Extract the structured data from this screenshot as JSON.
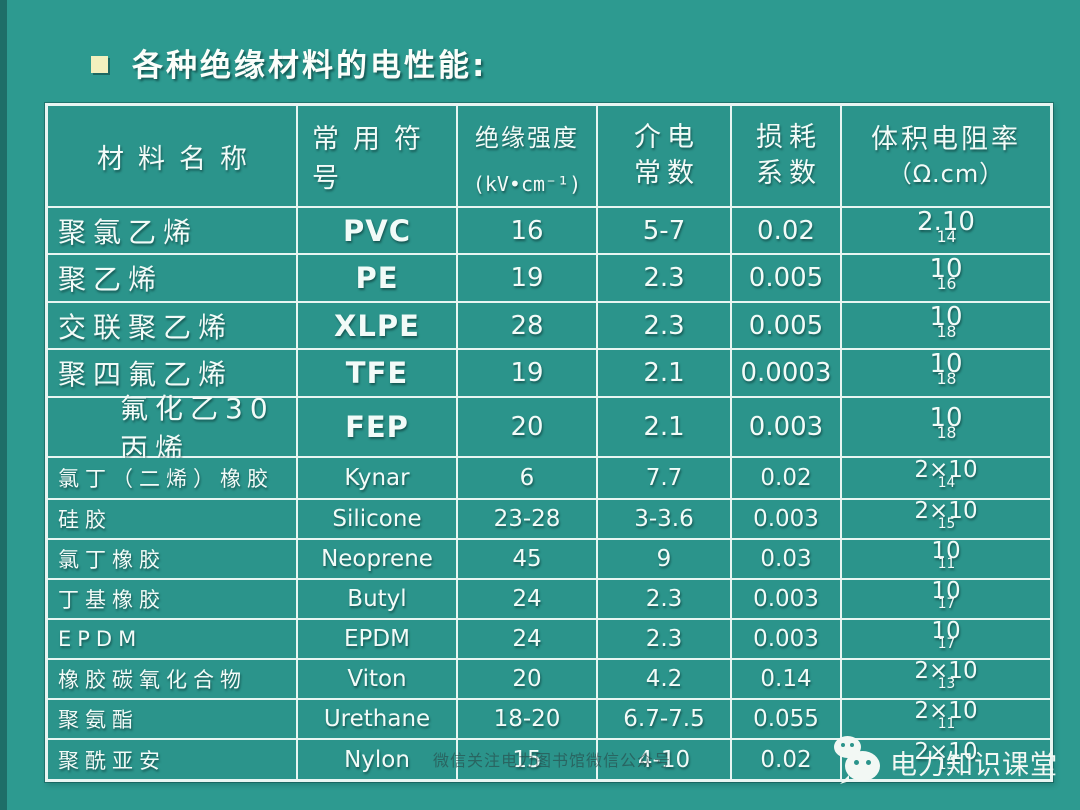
{
  "slide": {
    "title": "各种绝缘材料的电性能:"
  },
  "table": {
    "headers": [
      {
        "l1": "材料名称"
      },
      {
        "l1": "常用符号"
      },
      {
        "l1": "绝缘强度",
        "l2": "(kV•cm⁻¹)"
      },
      {
        "l1": "介电",
        "l2": "常数"
      },
      {
        "l1": "损耗",
        "l2": "系数"
      },
      {
        "l1": "体积电阻率",
        "l2": "（Ω.cm）"
      }
    ],
    "rows": [
      {
        "name": "聚氯乙烯",
        "symbol": "PVC",
        "strength": "16",
        "dielectric": "5-7",
        "loss": "0.02",
        "res": "2.10",
        "res_exp": "14"
      },
      {
        "name": "聚乙烯",
        "symbol": "PE",
        "strength": "19",
        "dielectric": "2.3",
        "loss": "0.005",
        "res": "10",
        "res_exp": "16"
      },
      {
        "name": "交联聚乙烯",
        "symbol": "XLPE",
        "strength": "28",
        "dielectric": "2.3",
        "loss": "0.005",
        "res": "10",
        "res_exp": "18"
      },
      {
        "name": "聚四氟乙烯",
        "symbol": "TFE",
        "strength": "19",
        "dielectric": "2.1",
        "loss": "0.0003",
        "res": "10",
        "res_exp": "18"
      },
      {
        "name": "氟化乙30丙烯",
        "symbol": "FEP",
        "strength": "20",
        "dielectric": "2.1",
        "loss": "0.003",
        "res": "10",
        "res_exp": "18",
        "indent": true
      },
      {
        "name": "氯丁（二烯）橡胶",
        "symbol": "Kynar",
        "strength": "6",
        "dielectric": "7.7",
        "loss": "0.02",
        "res": "2×10",
        "res_exp": "14"
      },
      {
        "name": "硅胶",
        "symbol": "Silicone",
        "strength": "23-28",
        "dielectric": "3-3.6",
        "loss": "0.003",
        "res": "2×10",
        "res_exp": "15"
      },
      {
        "name": "氯丁橡胶",
        "symbol": "Neoprene",
        "strength": "45",
        "dielectric": "9",
        "loss": "0.03",
        "res": "10",
        "res_exp": "11"
      },
      {
        "name": "丁基橡胶",
        "symbol": "Butyl",
        "strength": "24",
        "dielectric": "2.3",
        "loss": "0.003",
        "res": "10",
        "res_exp": "17"
      },
      {
        "name": "EPDM",
        "symbol": "EPDM",
        "strength": "24",
        "dielectric": "2.3",
        "loss": "0.003",
        "res": "10",
        "res_exp": "17"
      },
      {
        "name": "橡胶碳氧化合物",
        "symbol": "Viton",
        "strength": "20",
        "dielectric": "4.2",
        "loss": "0.14",
        "res": "2×10",
        "res_exp": "13"
      },
      {
        "name": "聚氨酯",
        "symbol": "Urethane",
        "strength": "18-20",
        "dielectric": "6.7-7.5",
        "loss": "0.055",
        "res": "2×10",
        "res_exp": "11"
      },
      {
        "name": "聚酰亚安",
        "symbol": "Nylon",
        "strength": "15",
        "dielectric": "4-10",
        "loss": "0.02",
        "res": "2×10",
        "res_exp": "13"
      }
    ]
  },
  "watermarks": {
    "center": "微信关注电力图书馆微信公众号",
    "brand": "电力知识课堂",
    "brand_icon": "wechat-icon"
  },
  "colors": {
    "background": "#2D9A90",
    "cell": "#2B948B",
    "grid": "#E8F5F2",
    "edge_stripe": "#1E6E68",
    "bullet": "#F3F0BE",
    "text": "#F2FBF8",
    "watermark": "rgba(40,62,64,0.55)",
    "watermark_brand": "#F2F8F4"
  }
}
